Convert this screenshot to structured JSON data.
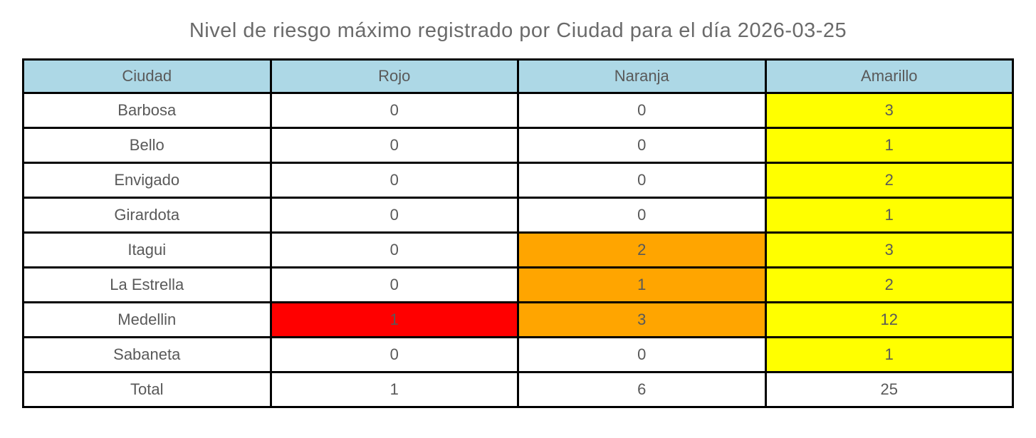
{
  "title": "Nivel de riesgo máximo registrado por Ciudad para el día 2026-03-25",
  "colors": {
    "header_bg": "#ADD8E6",
    "red": "#FF0000",
    "orange": "#FFA500",
    "yellow": "#FFFF00",
    "white": "#FFFFFF",
    "text": "#595959",
    "border": "#000000"
  },
  "chart_data": {
    "type": "table",
    "title": "Nivel de riesgo máximo registrado por Ciudad para el día 2026-03-25",
    "columns": [
      "Ciudad",
      "Rojo",
      "Naranja",
      "Amarillo"
    ],
    "rows": [
      {
        "ciudad": "Barbosa",
        "values": [
          0,
          0,
          3
        ],
        "bg": [
          "white",
          "white",
          "yellow"
        ]
      },
      {
        "ciudad": "Bello",
        "values": [
          0,
          0,
          1
        ],
        "bg": [
          "white",
          "white",
          "yellow"
        ]
      },
      {
        "ciudad": "Envigado",
        "values": [
          0,
          0,
          2
        ],
        "bg": [
          "white",
          "white",
          "yellow"
        ]
      },
      {
        "ciudad": "Girardota",
        "values": [
          0,
          0,
          1
        ],
        "bg": [
          "white",
          "white",
          "yellow"
        ]
      },
      {
        "ciudad": "Itagui",
        "values": [
          0,
          2,
          3
        ],
        "bg": [
          "white",
          "orange",
          "yellow"
        ]
      },
      {
        "ciudad": "La Estrella",
        "values": [
          0,
          1,
          2
        ],
        "bg": [
          "white",
          "orange",
          "yellow"
        ]
      },
      {
        "ciudad": "Medellin",
        "values": [
          1,
          3,
          12
        ],
        "bg": [
          "red",
          "orange",
          "yellow"
        ]
      },
      {
        "ciudad": "Sabaneta",
        "values": [
          0,
          0,
          1
        ],
        "bg": [
          "white",
          "white",
          "yellow"
        ]
      },
      {
        "ciudad": "Total",
        "values": [
          1,
          6,
          25
        ],
        "bg": [
          "white",
          "white",
          "white"
        ]
      }
    ]
  }
}
